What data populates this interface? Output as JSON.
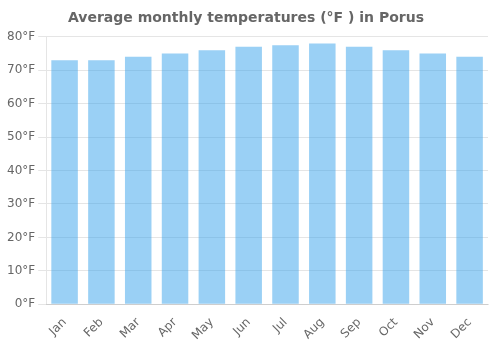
{
  "chart_data": {
    "type": "bar",
    "title": "Average monthly temperatures (°F ) in Porus",
    "categories": [
      "Jan",
      "Feb",
      "Mar",
      "Apr",
      "May",
      "Jun",
      "Jul",
      "Aug",
      "Sep",
      "Oct",
      "Nov",
      "Dec"
    ],
    "values": [
      73,
      73,
      74,
      75,
      76,
      77,
      77.5,
      78,
      77,
      76,
      75,
      74
    ],
    "ylim": [
      0,
      80
    ],
    "yticks": [
      {
        "value": 0,
        "label": "0°F"
      },
      {
        "value": 10,
        "label": "10°F"
      },
      {
        "value": 20,
        "label": "20°F"
      },
      {
        "value": 30,
        "label": "30°F"
      },
      {
        "value": 40,
        "label": "40°F"
      },
      {
        "value": 50,
        "label": "50°F"
      },
      {
        "value": 60,
        "label": "60°F"
      },
      {
        "value": 70,
        "label": "70°F"
      },
      {
        "value": 80,
        "label": "80°F"
      }
    ],
    "grid": true
  }
}
